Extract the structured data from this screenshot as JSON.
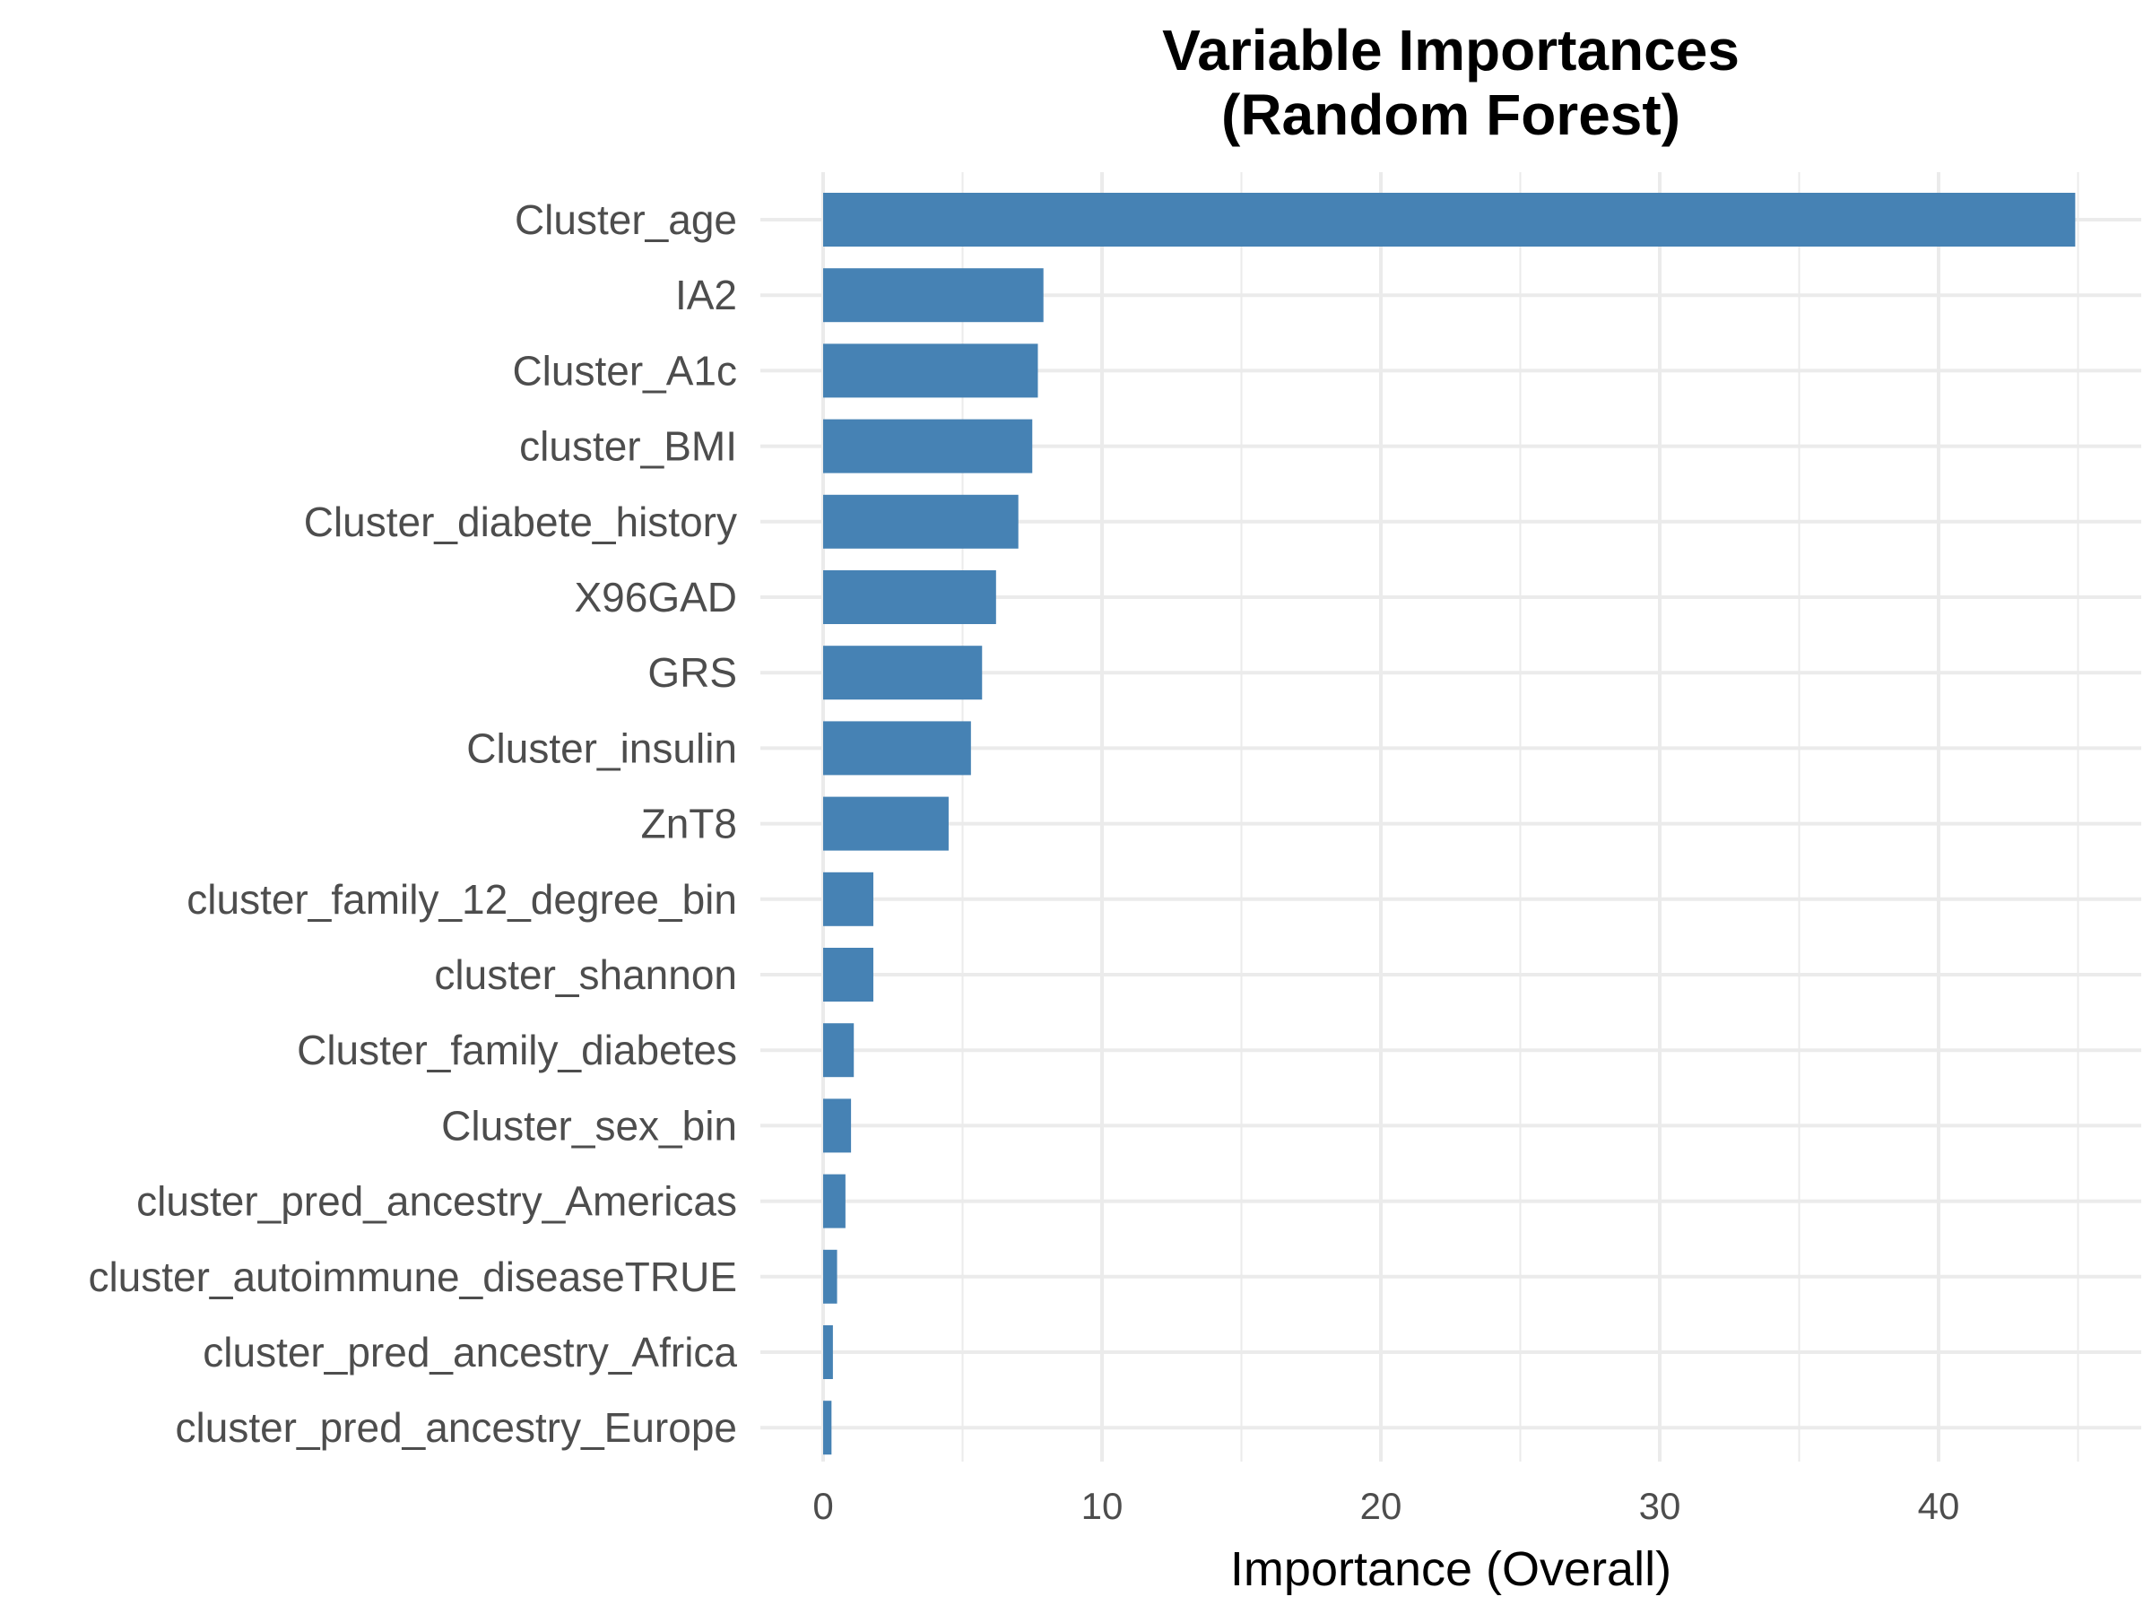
{
  "chart_data": {
    "type": "bar",
    "orientation": "horizontal",
    "title": "Variable Importances",
    "subtitle": "(Random Forest)",
    "xlabel": "Importance (Overall)",
    "ylabel": "",
    "xlim": [
      0,
      47
    ],
    "x_ticks": [
      0,
      10,
      20,
      30,
      40
    ],
    "grid": true,
    "bar_color": "#4682B4",
    "grid_color": "#EBEBEB",
    "categories": [
      "Cluster_age",
      "IA2",
      "Cluster_A1c",
      "cluster_BMI",
      "Cluster_diabete_history",
      "X96GAD",
      "GRS",
      "Cluster_insulin",
      "ZnT8",
      "cluster_family_12_degree_bin",
      "cluster_shannon",
      "Cluster_family_diabetes",
      "Cluster_sex_bin",
      "cluster_pred_ancestry_Americas",
      "cluster_autoimmune_diseaseTRUE",
      "cluster_pred_ancestry_Africa",
      "cluster_pred_ancestry_Europe"
    ],
    "values": [
      44.9,
      7.9,
      7.7,
      7.5,
      7.0,
      6.2,
      5.7,
      5.3,
      4.5,
      1.8,
      1.8,
      1.1,
      1.0,
      0.8,
      0.5,
      0.35,
      0.3
    ]
  }
}
